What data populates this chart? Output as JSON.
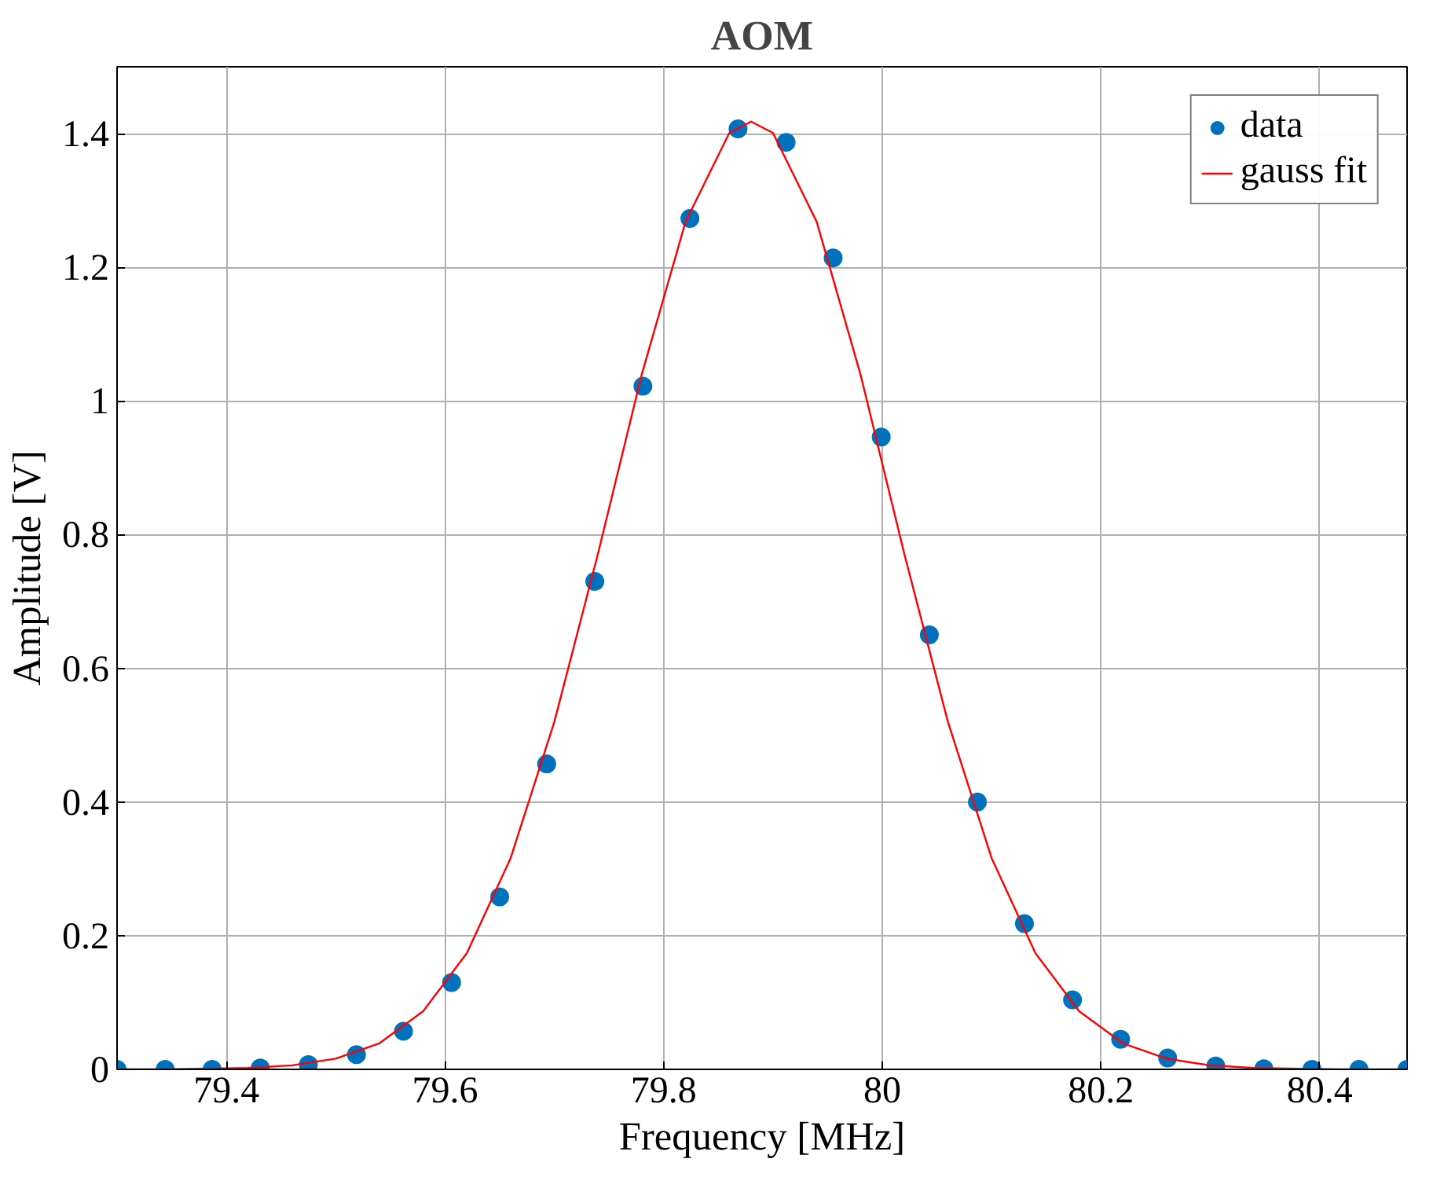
{
  "chart_data": {
    "type": "scatter",
    "title": "AOM",
    "xlabel": "Frequency [MHz]",
    "ylabel": "Amplitude [V]",
    "xlim": [
      79.3,
      80.48
    ],
    "ylim": [
      0,
      1.5
    ],
    "xticks": [
      79.4,
      79.6,
      79.8,
      80,
      80.2,
      80.4
    ],
    "yticks": [
      0,
      0.2,
      0.4,
      0.6,
      0.8,
      1,
      1.2,
      1.4
    ],
    "grid": true,
    "legend": "top right",
    "series": [
      {
        "name": "data",
        "marker": "circle",
        "color": "#0072bd",
        "x": [
          79.3,
          79.344,
          79.387,
          79.431,
          79.475,
          79.519,
          79.562,
          79.606,
          79.65,
          79.693,
          79.737,
          79.781,
          79.824,
          79.868,
          79.912,
          79.955,
          79.999,
          80.043,
          80.087,
          80.13,
          80.174,
          80.218,
          80.261,
          80.305,
          80.349,
          80.393,
          80.436,
          80.48
        ],
        "values": [
          0,
          0,
          0,
          0.002,
          0.007,
          0.022,
          0.057,
          0.13,
          0.258,
          0.457,
          0.73,
          1.022,
          1.273,
          1.407,
          1.387,
          1.214,
          0.946,
          0.65,
          0.4,
          0.218,
          0.104,
          0.045,
          0.017,
          0.005,
          0.001,
          0,
          0,
          0
        ]
      },
      {
        "name": "gauss fit",
        "type": "line",
        "line_style": "solid",
        "color": "#ff0000",
        "x": [
          79.3,
          79.34,
          79.38,
          79.42,
          79.46,
          79.5,
          79.54,
          79.58,
          79.62,
          79.66,
          79.7,
          79.74,
          79.78,
          79.82,
          79.86,
          79.88,
          79.9,
          79.94,
          79.98,
          80.02,
          80.06,
          80.1,
          80.14,
          80.18,
          80.22,
          80.26,
          80.3,
          80.34,
          80.38,
          80.42,
          80.46,
          80.48
        ],
        "values": [
          0,
          0,
          0.001,
          0.002,
          0.006,
          0.016,
          0.039,
          0.087,
          0.174,
          0.316,
          0.52,
          0.772,
          1.04,
          1.268,
          1.401,
          1.418,
          1.401,
          1.268,
          1.04,
          0.772,
          0.52,
          0.316,
          0.174,
          0.087,
          0.039,
          0.016,
          0.006,
          0.002,
          0.001,
          0,
          0,
          0
        ]
      }
    ]
  }
}
